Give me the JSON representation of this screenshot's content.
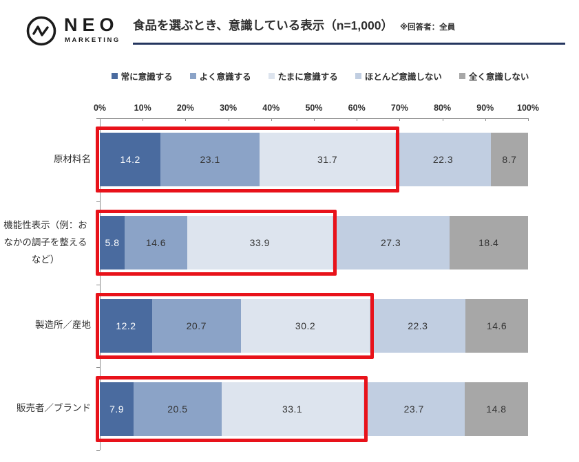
{
  "header": {
    "logo_brand": "NEO",
    "logo_sub": "MARKETING",
    "logo_icon": "circle-zigzag-icon",
    "title": "食品を選ぶとき、意識している表示（n=1,000）",
    "note": "※回答者：全員",
    "underline_color": "#24355e"
  },
  "chart_data": {
    "type": "bar",
    "stacked": true,
    "orientation": "horizontal",
    "unit": "%",
    "xlim": [
      0,
      100
    ],
    "x_ticks": [
      "0%",
      "10%",
      "20%",
      "30%",
      "40%",
      "50%",
      "60%",
      "70%",
      "80%",
      "90%",
      "100%"
    ],
    "legend_position": "top",
    "grid": false,
    "categories": [
      "原材料名",
      "機能性表示（例：おなかの調子を整えるなど）",
      "製造所／産地",
      "販売者／ブランド"
    ],
    "series": [
      {
        "name": "常に意識する",
        "color": "#4a6b9f",
        "text_color": "#ffffff",
        "values": [
          14.2,
          5.8,
          12.2,
          7.9
        ]
      },
      {
        "name": "よく意識する",
        "color": "#8ba3c7",
        "text_color": "#333333",
        "values": [
          23.1,
          14.6,
          20.7,
          20.5
        ]
      },
      {
        "name": "たまに意識する",
        "color": "#dde4ee",
        "text_color": "#333333",
        "values": [
          31.7,
          33.9,
          30.2,
          33.1
        ]
      },
      {
        "name": "ほとんど意識しない",
        "color": "#c1cee1",
        "text_color": "#333333",
        "values": [
          22.3,
          27.3,
          22.3,
          23.7
        ]
      },
      {
        "name": "全く意識しない",
        "color": "#a7a7a7",
        "text_color": "#333333",
        "values": [
          8.7,
          18.4,
          14.6,
          14.8
        ]
      }
    ],
    "row_totals": [
      100.0,
      100.0,
      100.0,
      100.0
    ],
    "highlight": {
      "color": "#e8121a",
      "segments_covered": 3,
      "description": "red box around first three segments of every bar"
    }
  }
}
